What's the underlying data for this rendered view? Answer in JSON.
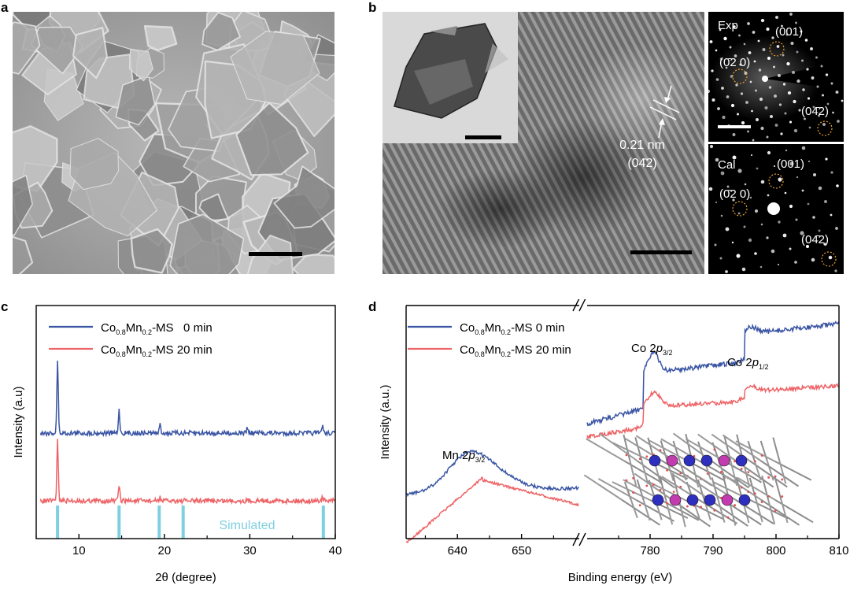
{
  "panels": {
    "a": "a",
    "b": "b",
    "c": "c",
    "d": "d"
  },
  "panel_b": {
    "lattice_spacing": "0.21 nm",
    "lattice_plane": "(04̄2)",
    "exp_label": "Exp",
    "cal_label": "Cal",
    "spot_001": "(001)",
    "spot_020": "(0̄2 0)",
    "spot_042": "(04̄2)"
  },
  "chart_data": [
    {
      "panel": "c",
      "type": "line",
      "xlabel": "2θ (degree)",
      "ylabel": "Intensity (a.u)",
      "xlim": [
        5,
        40
      ],
      "xticks": [
        "10",
        "20",
        "30",
        "40"
      ],
      "legend_position": "top-left",
      "series": [
        {
          "name": "Co0.8Mn0.2-MS 0 min",
          "color": "#3a55a4",
          "peaks": [
            [
              7.5,
              1.0
            ],
            [
              14.7,
              0.32
            ],
            [
              19.5,
              0.12
            ],
            [
              29.7,
              0.08
            ],
            [
              38.5,
              0.12
            ]
          ]
        },
        {
          "name": "Co0.8Mn0.2-MS 20 min",
          "color": "#ee6366",
          "peaks": [
            [
              7.5,
              0.85
            ],
            [
              14.7,
              0.22
            ],
            [
              19.5,
              0.05
            ],
            [
              38.5,
              0.06
            ]
          ]
        }
      ],
      "simulated": {
        "label": "Simulated",
        "color": "#7ed0e0",
        "positions": [
          7.5,
          14.7,
          19.4,
          22.2,
          38.6
        ]
      }
    },
    {
      "panel": "d",
      "type": "line",
      "xlabel": "Binding energy (eV)",
      "ylabel": "Intensity (a.u.)",
      "xticks": [
        "640",
        "650",
        "780",
        "790",
        "800",
        "810"
      ],
      "axis_break": true,
      "legend_position": "top-left",
      "series": [
        {
          "name": "Co0.8Mn0.2-MS 0 min",
          "color": "#3a55a4"
        },
        {
          "name": "Co0.8Mn0.2-MS 20 min",
          "color": "#ee6366"
        }
      ],
      "annotations": {
        "mn": {
          "base": "Mn 2",
          "orbital": "p",
          "sub": "3/2",
          "x": 642
        },
        "co32": {
          "base": "Co 2",
          "orbital": "p",
          "sub": "3/2",
          "x": 780.5
        },
        "co12": {
          "base": "Co 2",
          "orbital": "p",
          "sub": "1/2",
          "x": 796
        }
      }
    }
  ],
  "legend": {
    "s1": {
      "pre": "Co",
      "sub1": "0.8",
      "mid": "Mn",
      "sub2": "0.2",
      "post": "-MS   0 min"
    },
    "s2": {
      "pre": "Co",
      "sub1": "0.8",
      "mid": "Mn",
      "sub2": "0.2",
      "post": "-MS 20 min"
    }
  }
}
